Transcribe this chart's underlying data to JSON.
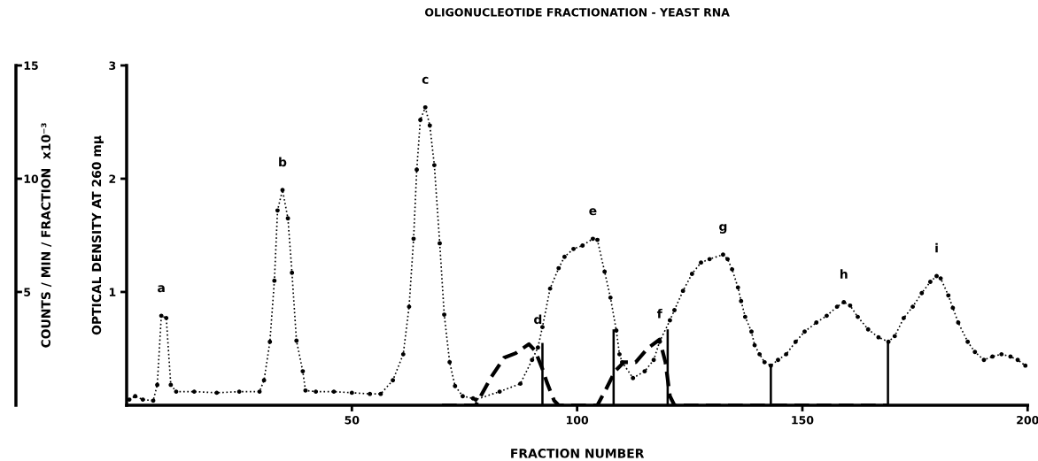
{
  "chart_data": {
    "type": "line",
    "title": "OLIGONUCLEOTIDE FRACTIONATION - YEAST RNA",
    "xlabel": "FRACTION NUMBER",
    "ylabel": "OPTICAL DENSITY AT 260 mμ",
    "y2label": "COUNTS / MIN / FRACTION  x10⁻³",
    "xlim": [
      0,
      200
    ],
    "xticks": [
      50,
      100,
      150,
      200
    ],
    "ylim": [
      0,
      3
    ],
    "yticks": [
      1,
      2,
      3
    ],
    "y2lim": [
      0,
      15
    ],
    "y2ticks": [
      5,
      10,
      15
    ],
    "series": [
      {
        "type": "line",
        "color": "#000000",
        "marker": "circle",
        "line_style": "dotted",
        "x": [
          0.6,
          1.9,
          3.6,
          5.9,
          6.8,
          7.7,
          8.8,
          9.8,
          11,
          15,
          20,
          25,
          29.5,
          30.5,
          31.8,
          32.8,
          33.5,
          34.6,
          35.8,
          36.7,
          37.7,
          39.1,
          39.7,
          42,
          46,
          50,
          54,
          56.4,
          59.1,
          61.4,
          62.7,
          63.7,
          64.4,
          65.2,
          66.3,
          67.3,
          68.3,
          69.5,
          70.5,
          71.7,
          72.9,
          74.6,
          76.9,
          77.5,
          82.8,
          87.4,
          90,
          91.3,
          92.3,
          94,
          95.9,
          97.2,
          99.2,
          101.2,
          103.5,
          104.5,
          106.1,
          107.4,
          108.7,
          109.4,
          110,
          112.4,
          115,
          117,
          118.3,
          120.6,
          121.6,
          123.5,
          125.5,
          127.5,
          129.4,
          132.4,
          133.4,
          134.4,
          135.7,
          136.4,
          137.3,
          138.7,
          139.4,
          140.5,
          141.6,
          143,
          144.6,
          146.4,
          148.5,
          150.5,
          153.1,
          155.4,
          157.7,
          159.2,
          160.6,
          162.3,
          164.6,
          166.9,
          169.1,
          170.5,
          172.5,
          174.5,
          176.5,
          178.4,
          179.8,
          180.7,
          182.4,
          183.4,
          184.6,
          186.7,
          188.3,
          190.3,
          192.2,
          194.2,
          196.2,
          197.8,
          199.5
        ],
        "values": [
          0.05,
          0.08,
          0.05,
          0.04,
          0.18,
          0.79,
          0.77,
          0.18,
          0.12,
          0.12,
          0.11,
          0.12,
          0.12,
          0.22,
          0.56,
          1.1,
          1.72,
          1.9,
          1.65,
          1.17,
          0.57,
          0.3,
          0.13,
          0.12,
          0.12,
          0.11,
          0.1,
          0.1,
          0.22,
          0.45,
          0.87,
          1.47,
          2.08,
          2.52,
          2.63,
          2.47,
          2.12,
          1.43,
          0.8,
          0.38,
          0.17,
          0.08,
          0.06,
          0.05,
          0.12,
          0.19,
          0.4,
          0.51,
          0.69,
          1.03,
          1.21,
          1.31,
          1.38,
          1.41,
          1.47,
          1.46,
          1.18,
          0.95,
          0.66,
          0.45,
          0.38,
          0.24,
          0.3,
          0.4,
          0.56,
          0.75,
          0.84,
          1.01,
          1.16,
          1.26,
          1.29,
          1.33,
          1.29,
          1.2,
          1.04,
          0.92,
          0.78,
          0.65,
          0.53,
          0.45,
          0.38,
          0.35,
          0.4,
          0.45,
          0.56,
          0.65,
          0.73,
          0.79,
          0.87,
          0.91,
          0.88,
          0.78,
          0.67,
          0.6,
          0.56,
          0.61,
          0.77,
          0.87,
          0.99,
          1.09,
          1.14,
          1.12,
          0.97,
          0.86,
          0.73,
          0.56,
          0.47,
          0.4,
          0.43,
          0.45,
          0.43,
          0.4,
          0.35
        ]
      },
      {
        "type": "line",
        "axis": "y2",
        "color": "#000000",
        "marker": "none",
        "line_style": "dashed",
        "x": [
          70,
          77.5,
          80.8,
          83.8,
          86.4,
          89.3,
          90.7,
          92.3,
          93.3,
          94.9,
          95.9,
          104.5,
          106.4,
          108.4,
          110.4,
          113,
          115.6,
          118.3,
          119.6,
          120.6,
          121.6,
          169
        ],
        "values": [
          0,
          0,
          1.2,
          2.1,
          2.3,
          2.7,
          2.4,
          1.6,
          1.0,
          0.2,
          0,
          0,
          0.7,
          1.5,
          1.9,
          1.9,
          2.5,
          2.9,
          1.9,
          0.4,
          0,
          0
        ]
      },
      {
        "type": "bar",
        "color": "#000000",
        "x": [
          92.3,
          108.1,
          120.1,
          143,
          169
        ],
        "values": [
          0.55,
          0.67,
          0.67,
          0.35,
          0.55
        ]
      }
    ],
    "annotations": [
      {
        "text": "a",
        "x": 7.7,
        "y": 0.79
      },
      {
        "text": "b",
        "x": 34.6,
        "y": 1.9
      },
      {
        "text": "c",
        "x": 66.3,
        "y": 2.63
      },
      {
        "text": "d",
        "x": 91.3,
        "y": 0.51
      },
      {
        "text": "e",
        "x": 103.5,
        "y": 1.47
      },
      {
        "text": "f",
        "x": 118.3,
        "y": 0.56
      },
      {
        "text": "g",
        "x": 132.4,
        "y": 1.33
      },
      {
        "text": "h",
        "x": 159.2,
        "y": 0.91
      },
      {
        "text": "i",
        "x": 179.8,
        "y": 1.14
      }
    ]
  }
}
